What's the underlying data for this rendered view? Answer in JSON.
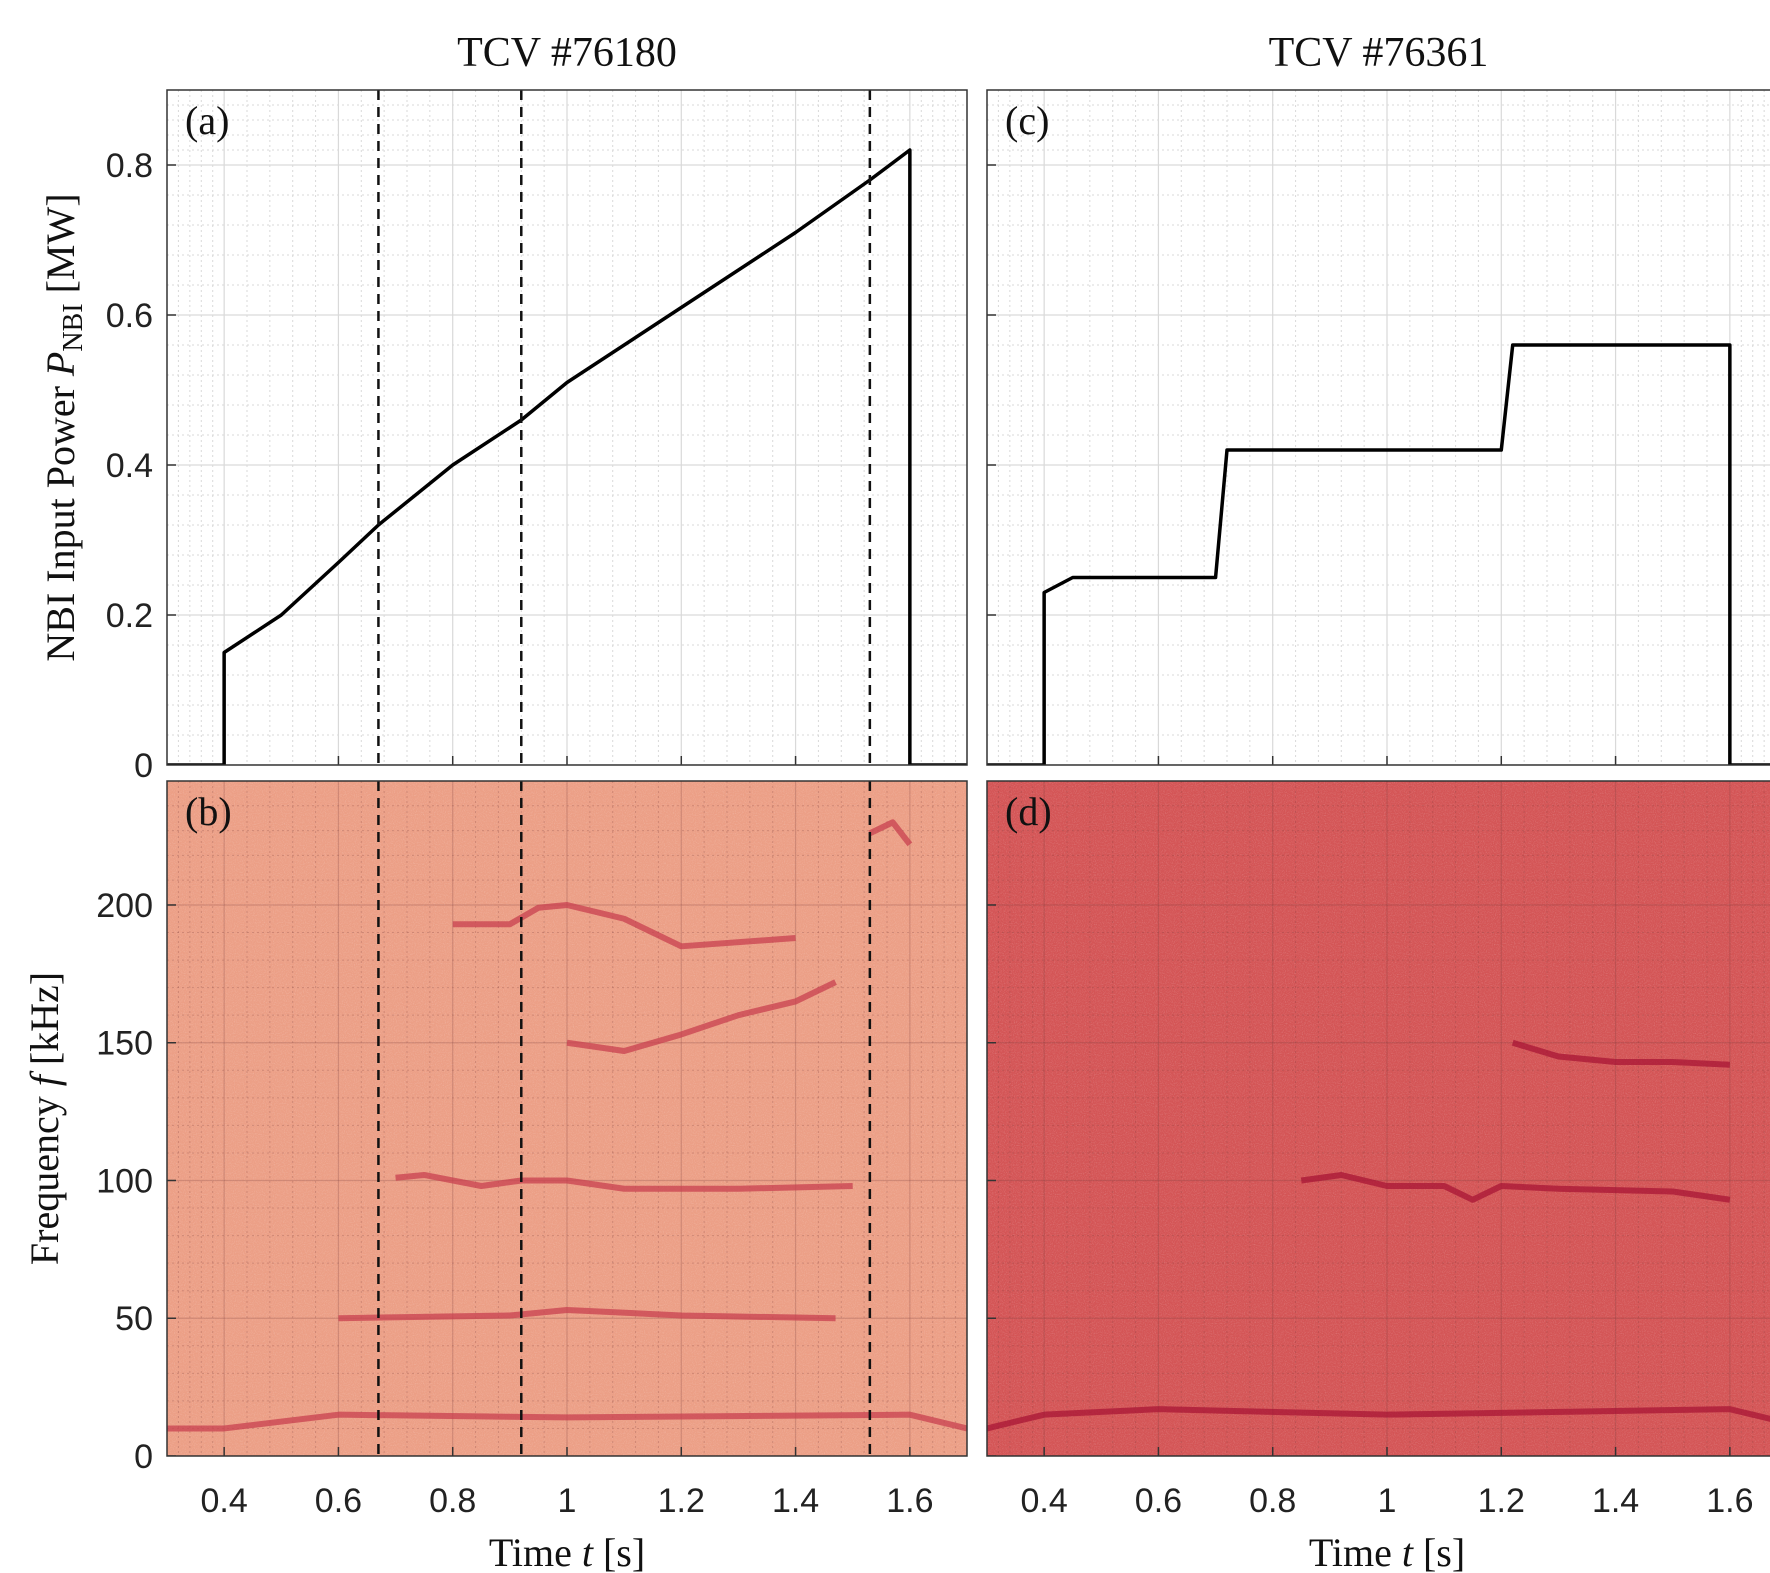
{
  "chart_data": [
    {
      "type": "line",
      "title": "TCV #76180",
      "panel_label": "(a)",
      "ylabel": {
        "text": "NBI Input Power ",
        "var": "P",
        "sub": "NBI",
        "unit": " [MW]"
      },
      "x": [
        0.3,
        0.4,
        0.4,
        0.5,
        0.6,
        0.67,
        0.8,
        0.92,
        1.0,
        1.2,
        1.4,
        1.53,
        1.6,
        1.6,
        1.7
      ],
      "values": [
        0,
        0,
        0.15,
        0.2,
        0.27,
        0.32,
        0.4,
        0.46,
        0.51,
        0.61,
        0.71,
        0.78,
        0.82,
        0,
        0
      ],
      "color": "#000000",
      "vlines": [
        0.67,
        0.92,
        1.53
      ],
      "xlim": [
        0.3,
        1.7
      ],
      "xticks": [
        0.4,
        0.6,
        0.8,
        1,
        1.2,
        1.4,
        1.6
      ],
      "show_xtick_labels": false,
      "ylim": [
        0,
        0.9
      ],
      "yticks": [
        0,
        0.2,
        0.4,
        0.6,
        0.8
      ],
      "grid": true
    },
    {
      "type": "spectrogram",
      "panel_label": "(b)",
      "xlabel": {
        "text": "Time ",
        "var": "t",
        "unit": " [s]"
      },
      "ylabel": {
        "text": "Frequency ",
        "var": "f",
        "unit": " [kHz]"
      },
      "background": "#ec9f86",
      "vlines": [
        0.67,
        0.92,
        1.53
      ],
      "series": [
        {
          "color": "#c8404f",
          "x": [
            0.3,
            0.4,
            0.6,
            1.0,
            1.6,
            1.7
          ],
          "values": [
            10,
            10,
            15,
            14,
            15,
            10
          ]
        },
        {
          "color": "#c8404f",
          "x": [
            0.6,
            0.9,
            1.0,
            1.2,
            1.47
          ],
          "values": [
            50,
            51,
            53,
            51,
            50
          ]
        },
        {
          "color": "#c8404f",
          "x": [
            0.7,
            0.75,
            0.85,
            0.92,
            1.0,
            1.1,
            1.3,
            1.5
          ],
          "values": [
            101,
            102,
            98,
            100,
            100,
            97,
            97,
            98
          ]
        },
        {
          "color": "#c8404f",
          "x": [
            1.0,
            1.1,
            1.2,
            1.3,
            1.4,
            1.47
          ],
          "values": [
            150,
            147,
            153,
            160,
            165,
            172
          ]
        },
        {
          "color": "#c8404f",
          "x": [
            0.8,
            0.9,
            0.95,
            1.0,
            1.1,
            1.2,
            1.4
          ],
          "values": [
            193,
            193,
            199,
            200,
            195,
            185,
            188
          ]
        },
        {
          "color": "#c8404f",
          "x": [
            1.53,
            1.57,
            1.6
          ],
          "values": [
            226,
            230,
            222
          ]
        }
      ],
      "xlim": [
        0.3,
        1.7
      ],
      "xticks": [
        0.4,
        0.6,
        0.8,
        1,
        1.2,
        1.4,
        1.6
      ],
      "ylim": [
        0,
        245
      ],
      "yticks": [
        0,
        50,
        100,
        150,
        200
      ],
      "grid": true
    },
    {
      "type": "line",
      "title": "TCV #76361",
      "panel_label": "(c)",
      "x": [
        0.3,
        0.4,
        0.4,
        0.45,
        0.7,
        0.72,
        1.0,
        1.2,
        1.22,
        1.6,
        1.6,
        1.7
      ],
      "values": [
        0,
        0,
        0.23,
        0.25,
        0.25,
        0.42,
        0.42,
        0.42,
        0.56,
        0.56,
        0,
        0
      ],
      "color": "#000000",
      "xlim": [
        0.3,
        1.7
      ],
      "xticks": [
        0.4,
        0.6,
        0.8,
        1,
        1.2,
        1.4,
        1.6
      ],
      "show_xtick_labels": false,
      "ylim": [
        0,
        0.9
      ],
      "yticks": [
        0,
        0.2,
        0.4,
        0.6,
        0.8
      ],
      "show_ytick_labels": false,
      "grid": true
    },
    {
      "type": "spectrogram",
      "panel_label": "(d)",
      "xlabel": {
        "text": "Time ",
        "var": "t",
        "unit": " [s]"
      },
      "background": "#d45556",
      "series": [
        {
          "color": "#a81535",
          "x": [
            0.3,
            0.4,
            0.6,
            1.0,
            1.6,
            1.7
          ],
          "values": [
            10,
            15,
            17,
            15,
            17,
            12
          ]
        },
        {
          "color": "#a81535",
          "x": [
            0.85,
            0.92,
            1.0,
            1.1,
            1.15,
            1.2,
            1.3,
            1.5,
            1.6
          ],
          "values": [
            100,
            102,
            98,
            98,
            93,
            98,
            97,
            96,
            93
          ]
        },
        {
          "color": "#a81535",
          "x": [
            1.22,
            1.3,
            1.4,
            1.5,
            1.6
          ],
          "values": [
            150,
            145,
            143,
            143,
            142
          ]
        }
      ],
      "xlim": [
        0.3,
        1.7
      ],
      "xticks": [
        0.4,
        0.6,
        0.8,
        1,
        1.2,
        1.4,
        1.6
      ],
      "ylim": [
        0,
        245
      ],
      "yticks": [
        0,
        50,
        100,
        150,
        200
      ],
      "show_ytick_labels": false,
      "grid": true
    }
  ]
}
